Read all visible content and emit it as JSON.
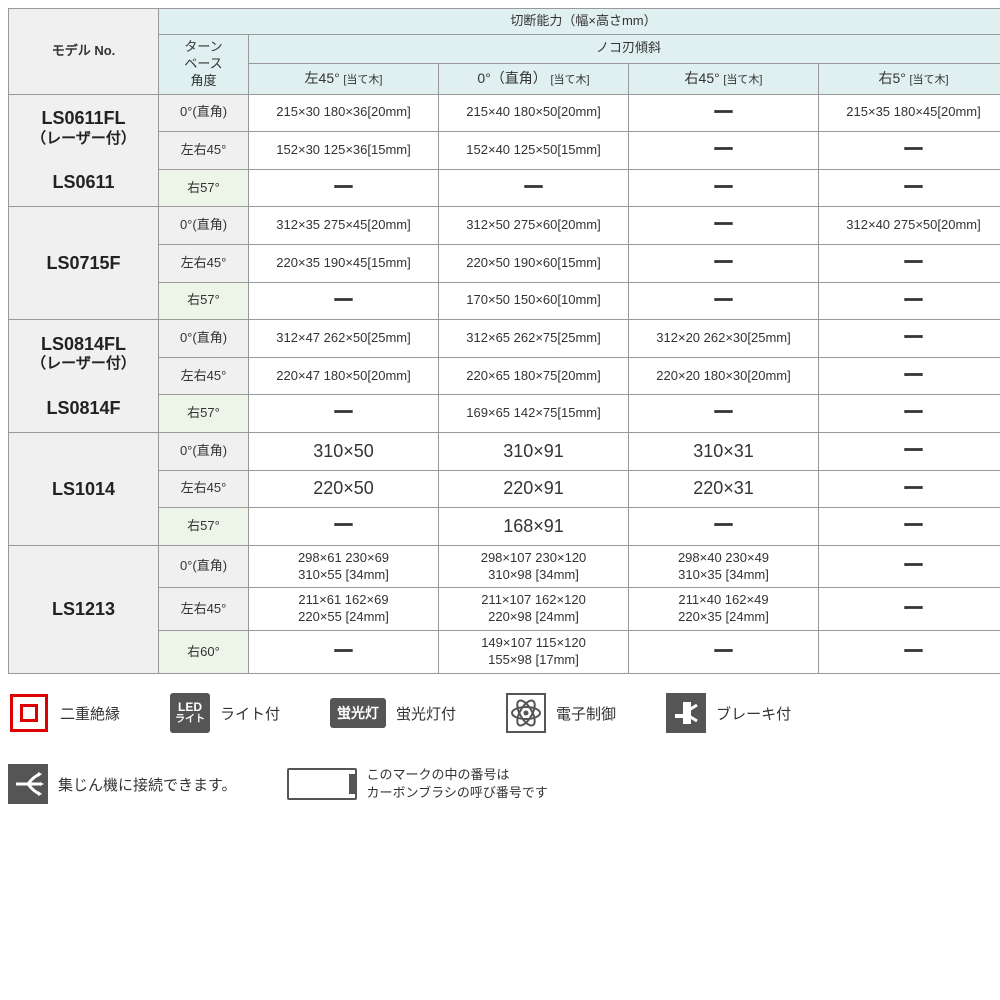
{
  "table": {
    "header": {
      "model": "モデル No.",
      "main": "切断能力（幅×高さmm）",
      "turn": "ターン\nベース\n角度",
      "blade": "ノコ刃傾斜",
      "cols": [
        {
          "main": "左45°",
          "sub": "[当て木]"
        },
        {
          "main": "0°（直角）",
          "sub": "[当て木]"
        },
        {
          "main": "右45°",
          "sub": "[当て木]"
        },
        {
          "main": "右5°",
          "sub": "[当て木]"
        }
      ]
    },
    "groups": [
      {
        "model_lines": [
          "LS0611FL",
          "（レーザー付）",
          "LS0611"
        ],
        "rows": [
          {
            "angle": "0°(直角)",
            "angle_bg": "gray",
            "cells": [
              "215×30 180×36[20mm]",
              "215×40 180×50[20mm]",
              "ー",
              "215×35 180×45[20mm]"
            ]
          },
          {
            "angle": "左右45°",
            "angle_bg": "gray",
            "cells": [
              "152×30 125×36[15mm]",
              "152×40 125×50[15mm]",
              "ー",
              "ー"
            ]
          },
          {
            "angle": "右57°",
            "angle_bg": "green",
            "cells": [
              "ー",
              "ー",
              "ー",
              "ー"
            ]
          }
        ]
      },
      {
        "model_lines": [
          "LS0715F"
        ],
        "rows": [
          {
            "angle": "0°(直角)",
            "angle_bg": "gray",
            "cells": [
              "312×35  275×45[20mm]",
              "312×50  275×60[20mm]",
              "ー",
              "312×40  275×50[20mm]"
            ]
          },
          {
            "angle": "左右45°",
            "angle_bg": "gray",
            "cells": [
              "220×35  190×45[15mm]",
              "220×50  190×60[15mm]",
              "ー",
              "ー"
            ]
          },
          {
            "angle": "右57°",
            "angle_bg": "green",
            "cells": [
              "ー",
              "170×50  150×60[10mm]",
              "ー",
              "ー"
            ]
          }
        ]
      },
      {
        "model_lines": [
          "LS0814FL",
          "（レーザー付）",
          "LS0814F"
        ],
        "rows": [
          {
            "angle": "0°(直角)",
            "angle_bg": "gray",
            "cells": [
              "312×47  262×50[25mm]",
              "312×65  262×75[25mm]",
              "312×20 262×30[25mm]",
              "ー"
            ]
          },
          {
            "angle": "左右45°",
            "angle_bg": "gray",
            "cells": [
              "220×47  180×50[20mm]",
              "220×65  180×75[20mm]",
              "220×20 180×30[20mm]",
              "ー"
            ]
          },
          {
            "angle": "右57°",
            "angle_bg": "green",
            "cells": [
              "ー",
              "169×65  142×75[15mm]",
              "ー",
              "ー"
            ]
          }
        ]
      },
      {
        "model_lines": [
          "LS1014"
        ],
        "big": true,
        "rows": [
          {
            "angle": "0°(直角)",
            "angle_bg": "gray",
            "cells": [
              "310×50",
              "310×91",
              "310×31",
              "ー"
            ]
          },
          {
            "angle": "左右45°",
            "angle_bg": "gray",
            "cells": [
              "220×50",
              "220×91",
              "220×31",
              "ー"
            ]
          },
          {
            "angle": "右57°",
            "angle_bg": "green",
            "cells": [
              "ー",
              "168×91",
              "ー",
              "ー"
            ]
          }
        ]
      },
      {
        "model_lines": [
          "LS1213"
        ],
        "rows": [
          {
            "angle": "0°(直角)",
            "angle_bg": "gray",
            "cells": [
              "298×61    230×69\n310×55     [34mm]",
              "298×107  230×120\n310×98     [34mm]",
              "298×40    230×49\n310×35     [34mm]",
              "ー"
            ]
          },
          {
            "angle": "左右45°",
            "angle_bg": "gray",
            "cells": [
              "211×61    162×69\n220×55     [24mm]",
              "211×107  162×120\n220×98     [24mm]",
              "211×40    162×49\n220×35     [24mm]",
              "ー"
            ]
          },
          {
            "angle": "右60°",
            "angle_bg": "green",
            "cells": [
              "ー",
              "149×107  115×120\n155×98     [17mm]",
              "ー",
              "ー"
            ]
          }
        ]
      }
    ]
  },
  "icons": {
    "di": "二重絶縁",
    "led_line1": "LED",
    "led_line2": "ライト",
    "led_label": "ライト付",
    "fluo_box": "蛍光灯",
    "fluo_label": "蛍光灯付",
    "elec": "電子制御",
    "brake": "ブレーキ付",
    "dust": "集じん機に接続できます。",
    "brush_line1": "このマークの中の番号は",
    "brush_line2": "カーボンブラシの呼び番号です"
  },
  "colors": {
    "header_green": "#e0efef",
    "cell_gray": "#f0f0f0",
    "cell_green": "#edf5e8",
    "border": "#999",
    "red": "#d00",
    "icon_dark": "#555"
  }
}
